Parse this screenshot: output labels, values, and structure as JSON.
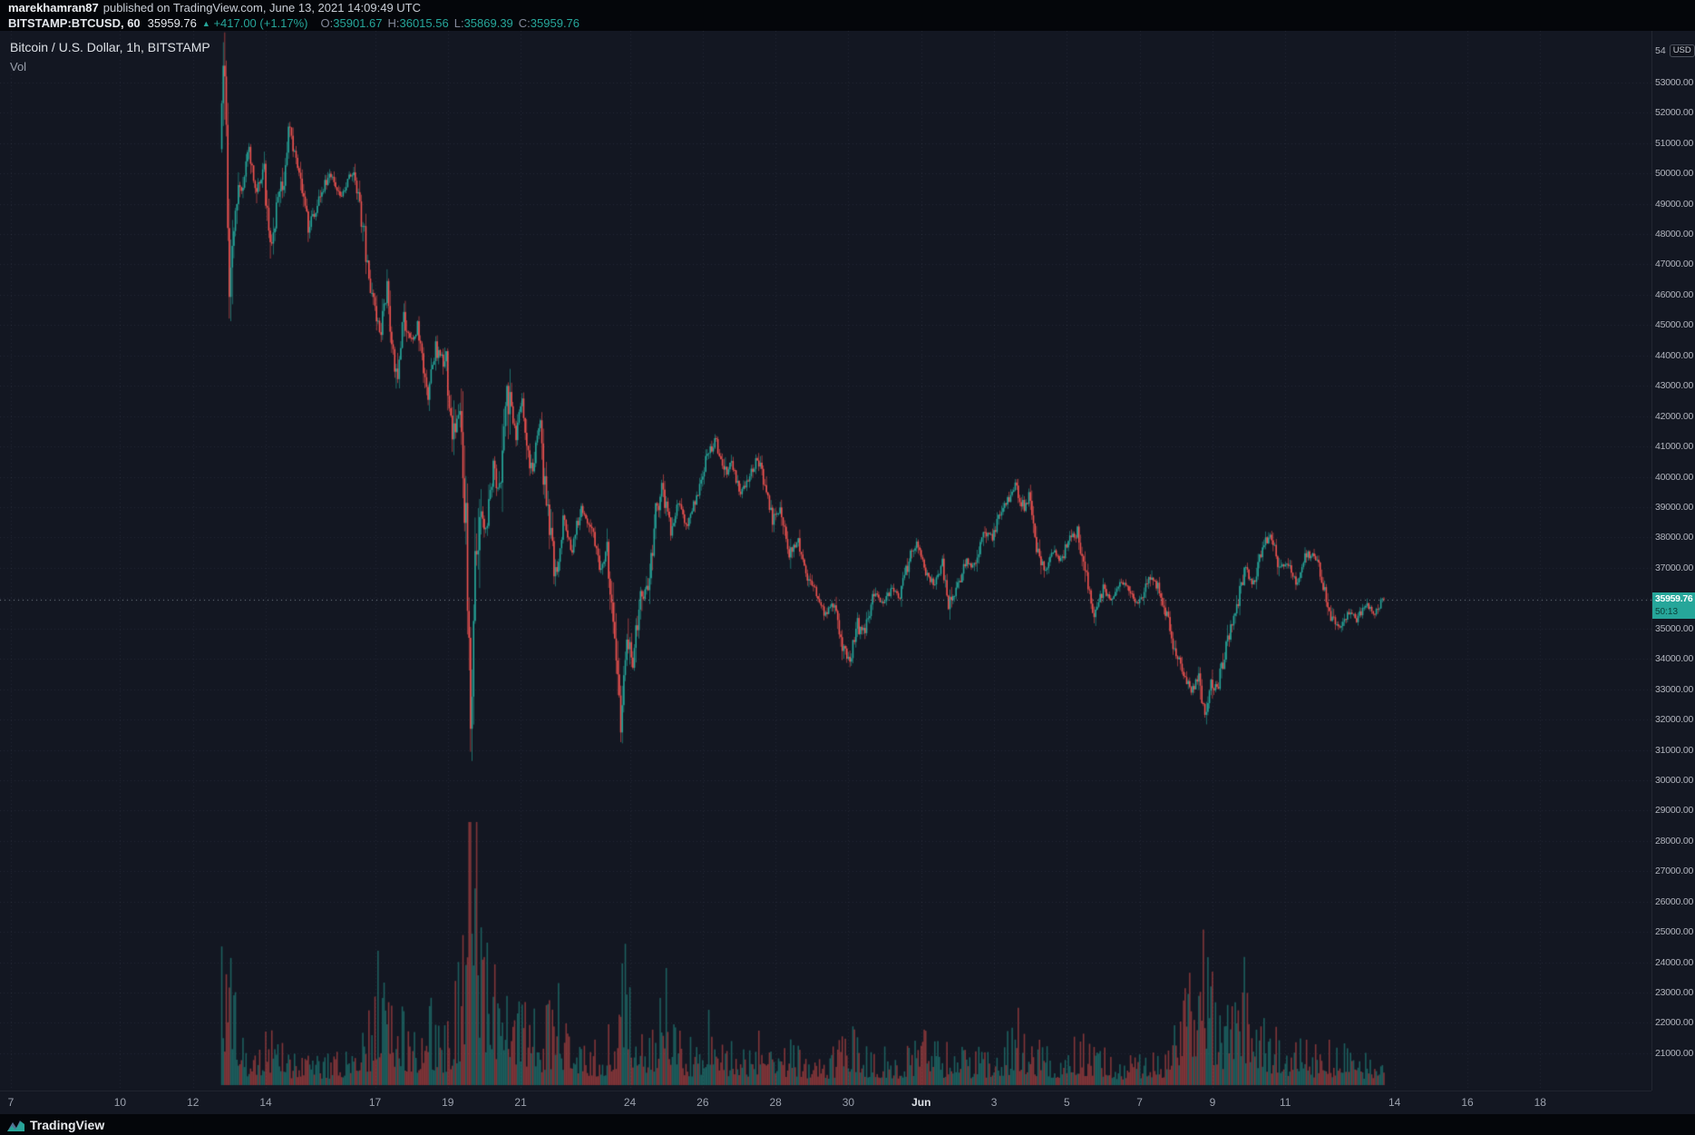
{
  "publish_bar": {
    "username": "marekhamran87",
    "info": "published on TradingView.com, June 13, 2021 14:09:49 UTC"
  },
  "symbol_bar": {
    "symbol": "BITSTAMP:BTCUSD, 60",
    "last": "35959.76",
    "up_icon": "▲",
    "change": "+417.00 (+1.17%)",
    "ohlc": [
      {
        "label": "O:",
        "value": "35901.67"
      },
      {
        "label": "H:",
        "value": "36015.56"
      },
      {
        "label": "L:",
        "value": "35869.39"
      },
      {
        "label": "C:",
        "value": "35959.76"
      }
    ]
  },
  "legend": {
    "title": "Bitcoin / U.S. Dollar, 1h, BITSTAMP",
    "indicator": "Vol"
  },
  "price_axis": {
    "top_partial": "54",
    "currency_badge": "USD",
    "last_price": "35959.76",
    "countdown": "50:13"
  },
  "watermark": {
    "text": "TradingView"
  },
  "colors": {
    "up": "#26a69a",
    "down": "#ef5350",
    "up_vol": "rgba(38,166,154,0.5)",
    "down_vol": "rgba(239,83,80,0.5)",
    "chart_bg": "#131722",
    "strip_bg": "#04060a",
    "axis_text": "#b2b5be",
    "accent": "#26a69a",
    "grid": "rgba(165,175,195,0.12)",
    "last_price_line": "rgba(148,158,170,0.85)"
  },
  "chart_data": {
    "type": "candlestick",
    "symbol": "BITSTAMP:BTCUSD",
    "interval": "60",
    "title": "Bitcoin / U.S. Dollar, 1h, BITSTAMP",
    "volume_indicator": "Vol",
    "ohlc_last": {
      "open": 35901.67,
      "high": 36015.56,
      "low": 35869.39,
      "close": 35959.76
    },
    "change": 417.0,
    "change_pct": 1.17,
    "ylim": [
      20400,
      54700
    ],
    "x_unit": "hours since 2021-05-07 00:00 UTC",
    "y_ticks": [
      53000,
      52000,
      51000,
      50000,
      49000,
      48000,
      47000,
      46000,
      45000,
      44000,
      43000,
      42000,
      41000,
      40000,
      39000,
      38000,
      37000,
      36000,
      35000,
      34000,
      33000,
      32000,
      31000,
      30000,
      29000,
      28000,
      27000,
      26000,
      25000,
      24000,
      23000,
      22000,
      21000
    ],
    "x_ticks": [
      {
        "label": "7",
        "day": 0
      },
      {
        "label": "10",
        "day": 3
      },
      {
        "label": "12",
        "day": 5
      },
      {
        "label": "14",
        "day": 7
      },
      {
        "label": "17",
        "day": 10
      },
      {
        "label": "19",
        "day": 12
      },
      {
        "label": "21",
        "day": 14
      },
      {
        "label": "24",
        "day": 17
      },
      {
        "label": "26",
        "day": 19
      },
      {
        "label": "28",
        "day": 21
      },
      {
        "label": "30",
        "day": 23
      },
      {
        "label": "Jun",
        "day": 25,
        "month": true
      },
      {
        "label": "3",
        "day": 27
      },
      {
        "label": "5",
        "day": 29
      },
      {
        "label": "7",
        "day": 31
      },
      {
        "label": "9",
        "day": 33
      },
      {
        "label": "11",
        "day": 35
      },
      {
        "label": "14",
        "day": 38
      },
      {
        "label": "16",
        "day": 40
      },
      {
        "label": "18",
        "day": 42
      }
    ],
    "price_path": [
      [
        139,
        50800
      ],
      [
        141,
        53600
      ],
      [
        143,
        50500
      ],
      [
        145,
        46300
      ],
      [
        147,
        47600
      ],
      [
        150,
        48900
      ],
      [
        154,
        49800
      ],
      [
        158,
        50700
      ],
      [
        163,
        49300
      ],
      [
        168,
        50200
      ],
      [
        172,
        47500
      ],
      [
        176,
        48800
      ],
      [
        180,
        49600
      ],
      [
        184,
        51400
      ],
      [
        190,
        50300
      ],
      [
        197,
        48100
      ],
      [
        204,
        49200
      ],
      [
        211,
        50000
      ],
      [
        218,
        49300
      ],
      [
        227,
        50100
      ],
      [
        233,
        48300
      ],
      [
        236,
        46900
      ],
      [
        244,
        44600
      ],
      [
        249,
        46200
      ],
      [
        255,
        43300
      ],
      [
        260,
        45300
      ],
      [
        265,
        44400
      ],
      [
        269,
        44900
      ],
      [
        276,
        42800
      ],
      [
        281,
        44200
      ],
      [
        288,
        43700
      ],
      [
        292,
        41100
      ],
      [
        297,
        42300
      ],
      [
        301,
        38800
      ],
      [
        304,
        32300
      ],
      [
        307,
        37300
      ],
      [
        310,
        39400
      ],
      [
        314,
        38100
      ],
      [
        319,
        40200
      ],
      [
        324,
        39300
      ],
      [
        328,
        43200
      ],
      [
        333,
        41300
      ],
      [
        338,
        42500
      ],
      [
        344,
        40100
      ],
      [
        349,
        41900
      ],
      [
        355,
        38600
      ],
      [
        360,
        36700
      ],
      [
        365,
        38400
      ],
      [
        371,
        37600
      ],
      [
        377,
        39000
      ],
      [
        383,
        38400
      ],
      [
        389,
        37000
      ],
      [
        394,
        37500
      ],
      [
        399,
        34900
      ],
      [
        403,
        32100
      ],
      [
        407,
        34500
      ],
      [
        411,
        33900
      ],
      [
        416,
        35900
      ],
      [
        421,
        36400
      ],
      [
        426,
        38700
      ],
      [
        430,
        39600
      ],
      [
        436,
        38300
      ],
      [
        441,
        39200
      ],
      [
        446,
        38300
      ],
      [
        451,
        39000
      ],
      [
        457,
        40200
      ],
      [
        462,
        40900
      ],
      [
        466,
        41200
      ],
      [
        471,
        40000
      ],
      [
        476,
        40500
      ],
      [
        482,
        39300
      ],
      [
        487,
        39900
      ],
      [
        493,
        40700
      ],
      [
        498,
        39700
      ],
      [
        503,
        38600
      ],
      [
        509,
        38900
      ],
      [
        514,
        37500
      ],
      [
        520,
        37800
      ],
      [
        526,
        36600
      ],
      [
        532,
        36200
      ],
      [
        537,
        35500
      ],
      [
        543,
        35800
      ],
      [
        549,
        34400
      ],
      [
        554,
        34000
      ],
      [
        559,
        35100
      ],
      [
        564,
        34900
      ],
      [
        570,
        36100
      ],
      [
        576,
        35800
      ],
      [
        582,
        36300
      ],
      [
        587,
        36000
      ],
      [
        593,
        37300
      ],
      [
        598,
        37800
      ],
      [
        603,
        37000
      ],
      [
        609,
        36500
      ],
      [
        615,
        37100
      ],
      [
        619,
        35700
      ],
      [
        625,
        36400
      ],
      [
        630,
        37200
      ],
      [
        636,
        37000
      ],
      [
        642,
        38200
      ],
      [
        648,
        38000
      ],
      [
        653,
        38800
      ],
      [
        659,
        39300
      ],
      [
        663,
        39800
      ],
      [
        667,
        38900
      ],
      [
        672,
        39300
      ],
      [
        677,
        37700
      ],
      [
        682,
        36900
      ],
      [
        688,
        37600
      ],
      [
        693,
        37200
      ],
      [
        699,
        38000
      ],
      [
        704,
        38200
      ],
      [
        709,
        36800
      ],
      [
        715,
        35500
      ],
      [
        721,
        36300
      ],
      [
        726,
        35900
      ],
      [
        732,
        36600
      ],
      [
        738,
        36300
      ],
      [
        744,
        35800
      ],
      [
        747,
        36000
      ],
      [
        752,
        36800
      ],
      [
        758,
        36300
      ],
      [
        764,
        35200
      ],
      [
        768,
        34300
      ],
      [
        774,
        33400
      ],
      [
        779,
        32900
      ],
      [
        784,
        33500
      ],
      [
        788,
        32000
      ],
      [
        792,
        33200
      ],
      [
        797,
        33100
      ],
      [
        802,
        34500
      ],
      [
        808,
        35500
      ],
      [
        814,
        36900
      ],
      [
        820,
        36500
      ],
      [
        825,
        37500
      ],
      [
        831,
        38200
      ],
      [
        837,
        36900
      ],
      [
        842,
        37200
      ],
      [
        848,
        36500
      ],
      [
        854,
        37400
      ],
      [
        860,
        37500
      ],
      [
        865,
        36600
      ],
      [
        871,
        35300
      ],
      [
        877,
        35000
      ],
      [
        883,
        35600
      ],
      [
        888,
        35300
      ],
      [
        894,
        35800
      ],
      [
        900,
        35500
      ],
      [
        905,
        35959.76
      ]
    ],
    "volume_profile": [
      [
        139,
        0.3
      ],
      [
        143,
        0.5
      ],
      [
        146,
        0.45
      ],
      [
        150,
        0.2
      ],
      [
        156,
        0.1
      ],
      [
        164,
        0.12
      ],
      [
        172,
        0.15
      ],
      [
        182,
        0.08
      ],
      [
        192,
        0.1
      ],
      [
        202,
        0.08
      ],
      [
        212,
        0.08
      ],
      [
        222,
        0.07
      ],
      [
        230,
        0.1
      ],
      [
        238,
        0.18
      ],
      [
        244,
        0.38
      ],
      [
        250,
        0.2
      ],
      [
        256,
        0.25
      ],
      [
        262,
        0.15
      ],
      [
        270,
        0.14
      ],
      [
        277,
        0.2
      ],
      [
        284,
        0.12
      ],
      [
        290,
        0.2
      ],
      [
        296,
        0.3
      ],
      [
        300,
        0.5
      ],
      [
        303,
        0.95
      ],
      [
        305,
        1
      ],
      [
        307,
        0.8
      ],
      [
        310,
        0.5
      ],
      [
        314,
        0.35
      ],
      [
        320,
        0.25
      ],
      [
        326,
        0.22
      ],
      [
        329,
        0.3
      ],
      [
        334,
        0.18
      ],
      [
        340,
        0.2
      ],
      [
        348,
        0.15
      ],
      [
        355,
        0.18
      ],
      [
        360,
        0.28
      ],
      [
        366,
        0.15
      ],
      [
        372,
        0.1
      ],
      [
        380,
        0.12
      ],
      [
        388,
        0.1
      ],
      [
        395,
        0.14
      ],
      [
        400,
        0.22
      ],
      [
        403,
        0.45
      ],
      [
        406,
        0.3
      ],
      [
        410,
        0.2
      ],
      [
        416,
        0.15
      ],
      [
        421,
        0.12
      ],
      [
        427,
        0.22
      ],
      [
        431,
        0.28
      ],
      [
        437,
        0.15
      ],
      [
        444,
        0.12
      ],
      [
        452,
        0.1
      ],
      [
        458,
        0.14
      ],
      [
        464,
        0.2
      ],
      [
        470,
        0.12
      ],
      [
        478,
        0.1
      ],
      [
        486,
        0.1
      ],
      [
        493,
        0.13
      ],
      [
        500,
        0.1
      ],
      [
        508,
        0.09
      ],
      [
        515,
        0.1
      ],
      [
        523,
        0.08
      ],
      [
        531,
        0.09
      ],
      [
        539,
        0.08
      ],
      [
        547,
        0.1
      ],
      [
        554,
        0.18
      ],
      [
        560,
        0.1
      ],
      [
        568,
        0.08
      ],
      [
        576,
        0.09
      ],
      [
        584,
        0.08
      ],
      [
        592,
        0.1
      ],
      [
        599,
        0.12
      ],
      [
        606,
        0.12
      ],
      [
        614,
        0.09
      ],
      [
        621,
        0.1
      ],
      [
        629,
        0.09
      ],
      [
        637,
        0.08
      ],
      [
        645,
        0.1
      ],
      [
        652,
        0.11
      ],
      [
        659,
        0.13
      ],
      [
        663,
        0.18
      ],
      [
        669,
        0.12
      ],
      [
        676,
        0.11
      ],
      [
        684,
        0.09
      ],
      [
        691,
        0.09
      ],
      [
        699,
        0.12
      ],
      [
        705,
        0.12
      ],
      [
        712,
        0.1
      ],
      [
        719,
        0.09
      ],
      [
        727,
        0.07
      ],
      [
        735,
        0.07
      ],
      [
        743,
        0.07
      ],
      [
        750,
        0.08
      ],
      [
        757,
        0.08
      ],
      [
        764,
        0.12
      ],
      [
        771,
        0.18
      ],
      [
        778,
        0.25
      ],
      [
        783,
        0.3
      ],
      [
        788,
        0.42
      ],
      [
        793,
        0.25
      ],
      [
        800,
        0.18
      ],
      [
        807,
        0.2
      ],
      [
        813,
        0.28
      ],
      [
        819,
        0.22
      ],
      [
        826,
        0.15
      ],
      [
        833,
        0.13
      ],
      [
        840,
        0.11
      ],
      [
        847,
        0.1
      ],
      [
        854,
        0.11
      ],
      [
        861,
        0.09
      ],
      [
        868,
        0.1
      ],
      [
        875,
        0.1
      ],
      [
        882,
        0.08
      ],
      [
        889,
        0.07
      ],
      [
        896,
        0.07
      ],
      [
        902,
        0.06
      ]
    ]
  }
}
